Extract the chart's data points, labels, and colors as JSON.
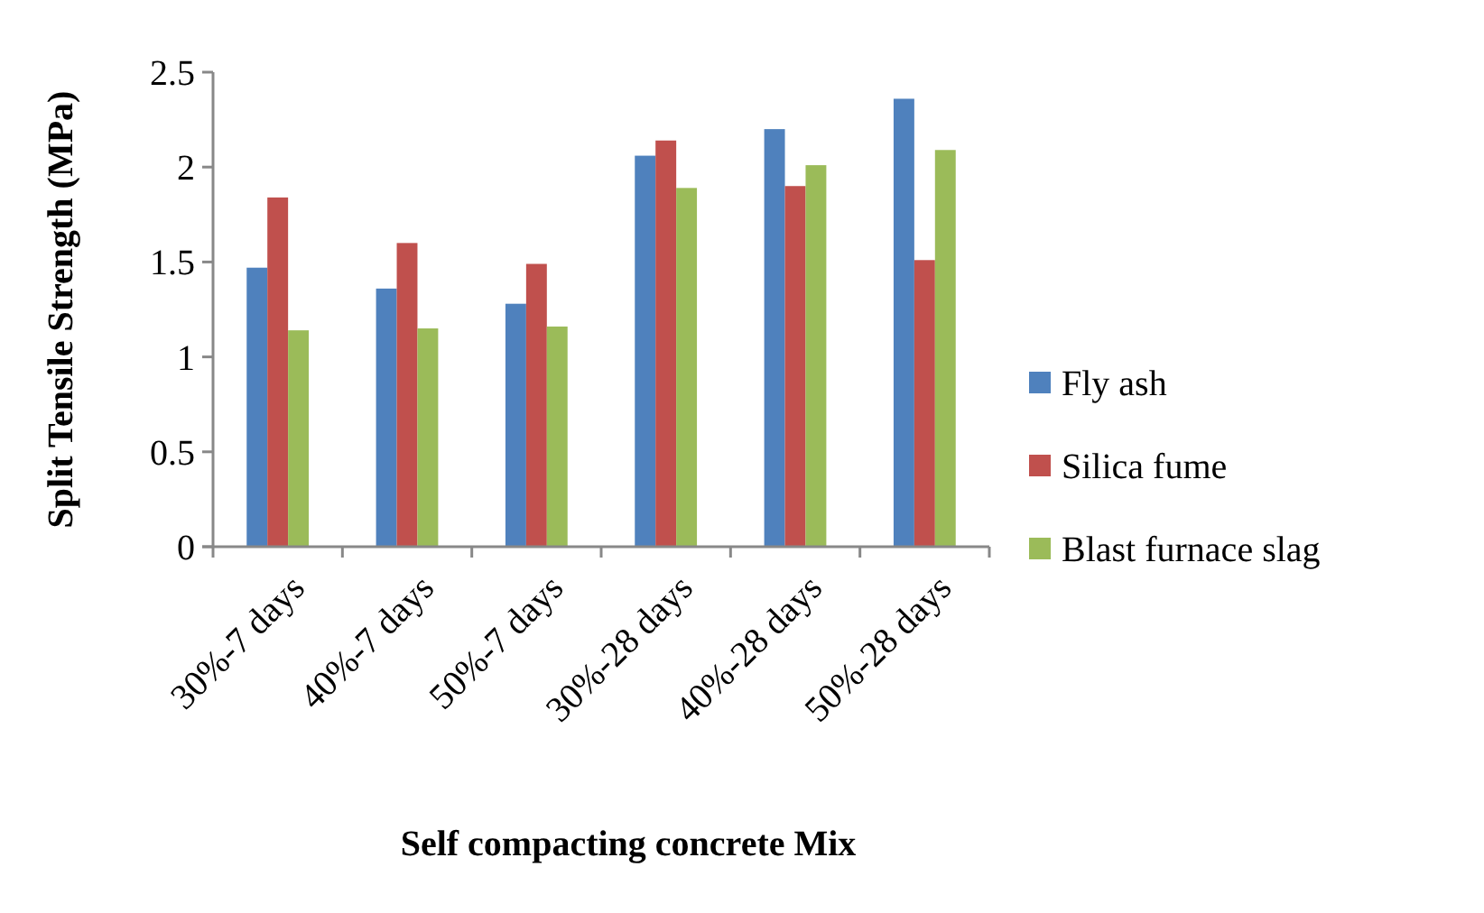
{
  "chart_data": {
    "type": "bar",
    "xlabel": "Self compacting concrete Mix",
    "ylabel": "Split Tensile Strength (MPa)",
    "categories": [
      "30%-7 days",
      "40%-7 days",
      "50%-7 days",
      "30%-28 days",
      "40%-28 days",
      "50%-28 days"
    ],
    "series": [
      {
        "name": "Fly ash",
        "color": "#4f81bd",
        "values": [
          1.47,
          1.36,
          1.28,
          2.06,
          2.2,
          2.36
        ]
      },
      {
        "name": "Silica fume",
        "color": "#c0504d",
        "values": [
          1.84,
          1.6,
          1.49,
          2.14,
          1.9,
          1.51
        ]
      },
      {
        "name": "Blast furnace slag",
        "color": "#9bbb59",
        "values": [
          1.14,
          1.15,
          1.16,
          1.89,
          2.01,
          2.09
        ]
      }
    ],
    "ylim": [
      0,
      2.5
    ],
    "yticks": [
      0,
      0.5,
      1,
      1.5,
      2,
      2.5
    ],
    "grid": false,
    "legend": "right"
  }
}
